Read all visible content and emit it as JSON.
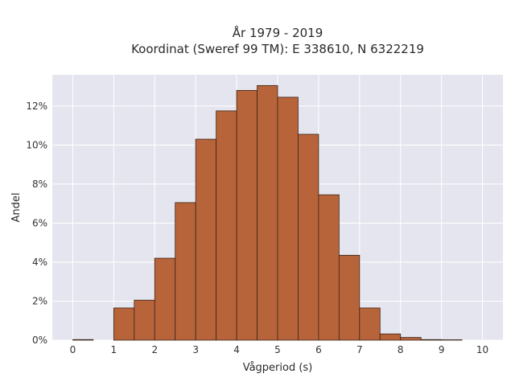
{
  "chart_data": {
    "type": "bar",
    "title_line1": "År 1979 - 2019",
    "title_line2": "Koordinat (Sweref 99 TM): E 338610, N 6322219",
    "xlabel": "Vågperiod (s)",
    "ylabel": "Andel",
    "xlim": [
      -0.5,
      10.5
    ],
    "ylim": [
      0,
      13.6
    ],
    "grid": true,
    "bin_width": 0.5,
    "x_ticks": [
      "0",
      "1",
      "2",
      "3",
      "4",
      "5",
      "6",
      "7",
      "8",
      "9",
      "10"
    ],
    "y_ticks": [
      "0%",
      "2%",
      "4%",
      "6%",
      "8%",
      "10%",
      "12%"
    ],
    "bins": [
      {
        "start": 0.0,
        "value": 0.03
      },
      {
        "start": 0.5,
        "value": 0.0
      },
      {
        "start": 1.0,
        "value": 1.65
      },
      {
        "start": 1.5,
        "value": 2.05
      },
      {
        "start": 2.0,
        "value": 4.2
      },
      {
        "start": 2.5,
        "value": 7.05
      },
      {
        "start": 3.0,
        "value": 10.3
      },
      {
        "start": 3.5,
        "value": 11.75
      },
      {
        "start": 4.0,
        "value": 12.8
      },
      {
        "start": 4.5,
        "value": 13.05
      },
      {
        "start": 5.0,
        "value": 12.45
      },
      {
        "start": 5.5,
        "value": 10.55
      },
      {
        "start": 6.0,
        "value": 7.45
      },
      {
        "start": 6.5,
        "value": 4.35
      },
      {
        "start": 7.0,
        "value": 1.65
      },
      {
        "start": 7.5,
        "value": 0.32
      },
      {
        "start": 8.0,
        "value": 0.14
      },
      {
        "start": 8.5,
        "value": 0.03
      },
      {
        "start": 9.0,
        "value": 0.02
      }
    ],
    "colors": {
      "bar_fill": "#b8643a",
      "bar_stroke": "#3a2418",
      "plot_bg": "#e5e5ef",
      "grid": "#ffffff"
    }
  }
}
